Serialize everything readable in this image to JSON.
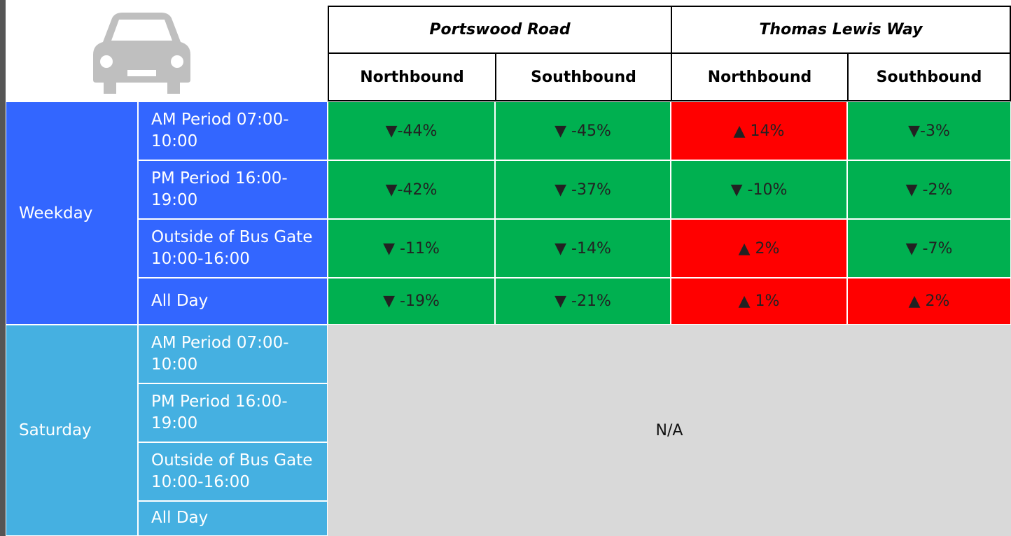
{
  "header": {
    "roads": [
      "Portswood Road",
      "Thomas Lewis Way"
    ],
    "directions": [
      "Northbound",
      "Southbound",
      "Northbound",
      "Southbound"
    ]
  },
  "groups": [
    {
      "label": "Weekday",
      "periods": [
        "AM Period 07:00-10:00",
        "PM Period 16:00-19:00",
        "Outside of Bus Gate 10:00-16:00",
        "All Day"
      ],
      "rows": [
        [
          "▼-44%",
          "▼ -45%",
          "▲ 14%",
          "▼-3%"
        ],
        [
          "▼-42%",
          "▼ -37%",
          "▼ -10%",
          "▼ -2%"
        ],
        [
          "▼ -11%",
          "▼ -14%",
          "▲ 2%",
          "▼ -7%"
        ],
        [
          "▼ -19%",
          "▼ -21%",
          "▲ 1%",
          "▲ 2%"
        ]
      ]
    },
    {
      "label": "Saturday",
      "periods": [
        "AM Period 07:00-10:00",
        "PM Period 16:00-19:00",
        "Outside of Bus Gate 10:00-16:00",
        "All Day"
      ],
      "note": "N/A"
    }
  ]
}
